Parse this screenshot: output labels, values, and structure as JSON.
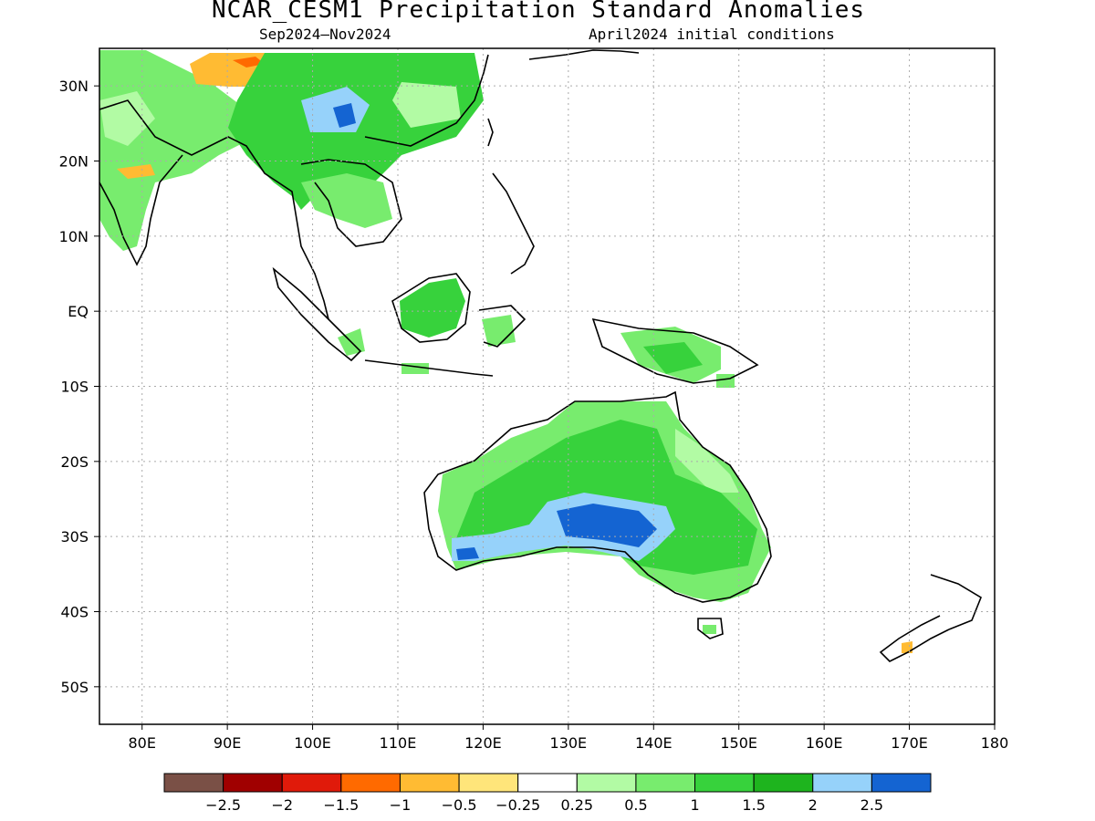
{
  "title": "NCAR_CESM1 Precipitation Standard Anomalies",
  "subtitle_left": "Sep2024–Nov2024",
  "subtitle_right": "April2024 initial conditions",
  "map": {
    "lon_range": [
      75,
      180
    ],
    "lat_range": [
      -55,
      35
    ],
    "lon_ticks": [
      "80E",
      "90E",
      "100E",
      "110E",
      "120E",
      "130E",
      "140E",
      "150E",
      "160E",
      "170E",
      "180"
    ],
    "lat_ticks": [
      "30N",
      "20N",
      "10N",
      "EQ",
      "10S",
      "20S",
      "30S",
      "40S",
      "50S"
    ]
  },
  "legend": {
    "colors": [
      "#7a5046",
      "#a00000",
      "#e01a0a",
      "#ff6a00",
      "#ffbb33",
      "#ffe57a",
      "#ffffff",
      "#b2fba4",
      "#78ec6e",
      "#37d23c",
      "#1eb41e",
      "#96d2fa",
      "#1464d2"
    ],
    "labels": [
      "−2.5",
      "−2",
      "−1.5",
      "−1",
      "−0.5",
      "−0.25",
      "0.25",
      "0.5",
      "1",
      "1.5",
      "2",
      "2.5"
    ]
  }
}
